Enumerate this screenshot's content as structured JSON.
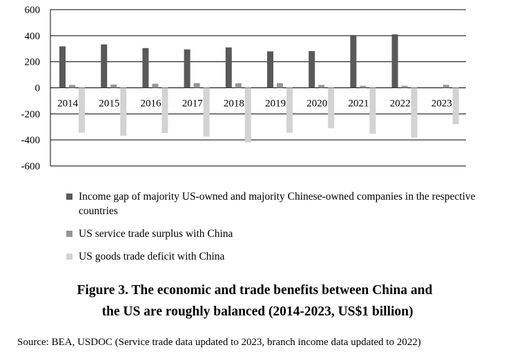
{
  "chart_data": {
    "type": "bar",
    "categories": [
      "2014",
      "2015",
      "2016",
      "2017",
      "2018",
      "2019",
      "2020",
      "2021",
      "2022",
      "2023"
    ],
    "series": [
      {
        "name": "Income gap of majority US-owned and majority Chinese-owned companies in the respective countries",
        "values": [
          318,
          333,
          305,
          295,
          310,
          280,
          282,
          405,
          410,
          null
        ],
        "color": "#595959"
      },
      {
        "name": "US service trade surplus with China",
        "values": [
          22,
          25,
          31,
          36,
          35,
          36,
          22,
          15,
          15,
          23
        ],
        "color": "#969696"
      },
      {
        "name": "US goods trade deficit with China",
        "values": [
          -345,
          -368,
          -347,
          -375,
          -418,
          -345,
          -310,
          -352,
          -382,
          -279
        ],
        "color": "#d3d3d3"
      }
    ],
    "ylim": [
      -600,
      600
    ],
    "yticks": [
      "600",
      "400",
      "200",
      "0",
      "-200",
      "-400",
      "-600"
    ],
    "ytick_values": [
      600,
      400,
      200,
      0,
      -200,
      -400,
      -600
    ],
    "grid": true,
    "legend_placement": "bottom",
    "title_line1": "Figure 3. The economic and trade benefits between China and",
    "title_line2": "the US are roughly balanced (2014-2023, US$1 billion)",
    "source": "Source: BEA, USDOC (Service trade data updated to 2023, branch income data updated to 2022)"
  }
}
